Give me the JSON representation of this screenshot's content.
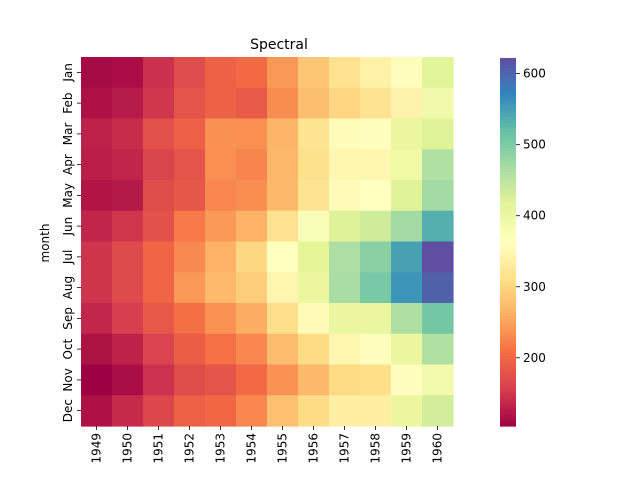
{
  "chart_data": {
    "type": "heatmap",
    "title": "Spectral",
    "xlabel": "",
    "ylabel": "month",
    "colormap": "Spectral",
    "x": [
      "1949",
      "1950",
      "1951",
      "1952",
      "1953",
      "1954",
      "1955",
      "1956",
      "1957",
      "1958",
      "1959",
      "1960"
    ],
    "y": [
      "Jan",
      "Feb",
      "Mar",
      "Apr",
      "May",
      "Jun",
      "Jul",
      "Aug",
      "Sep",
      "Oct",
      "Nov",
      "Dec"
    ],
    "values": [
      [
        112,
        115,
        145,
        171,
        196,
        204,
        242,
        284,
        315,
        340,
        360,
        417
      ],
      [
        118,
        126,
        150,
        180,
        196,
        188,
        233,
        277,
        301,
        318,
        342,
        391
      ],
      [
        132,
        141,
        178,
        193,
        236,
        235,
        267,
        317,
        356,
        362,
        406,
        419
      ],
      [
        129,
        135,
        163,
        181,
        235,
        227,
        269,
        313,
        348,
        348,
        396,
        461
      ],
      [
        121,
        125,
        172,
        183,
        229,
        234,
        270,
        318,
        355,
        363,
        420,
        472
      ],
      [
        135,
        149,
        178,
        218,
        243,
        264,
        315,
        374,
        422,
        435,
        472,
        535
      ],
      [
        148,
        170,
        199,
        230,
        264,
        302,
        364,
        413,
        465,
        491,
        548,
        622
      ],
      [
        148,
        170,
        199,
        242,
        272,
        293,
        347,
        405,
        467,
        505,
        559,
        606
      ],
      [
        136,
        158,
        184,
        209,
        237,
        259,
        312,
        355,
        404,
        404,
        463,
        508
      ],
      [
        119,
        133,
        162,
        191,
        211,
        229,
        274,
        306,
        347,
        359,
        407,
        461
      ],
      [
        104,
        114,
        146,
        172,
        180,
        203,
        237,
        271,
        305,
        310,
        362,
        390
      ],
      [
        118,
        140,
        166,
        194,
        201,
        229,
        278,
        306,
        336,
        337,
        405,
        432
      ]
    ],
    "vmin": 104,
    "vmax": 622,
    "colorbar_ticks": [
      200,
      300,
      400,
      500,
      600
    ]
  }
}
